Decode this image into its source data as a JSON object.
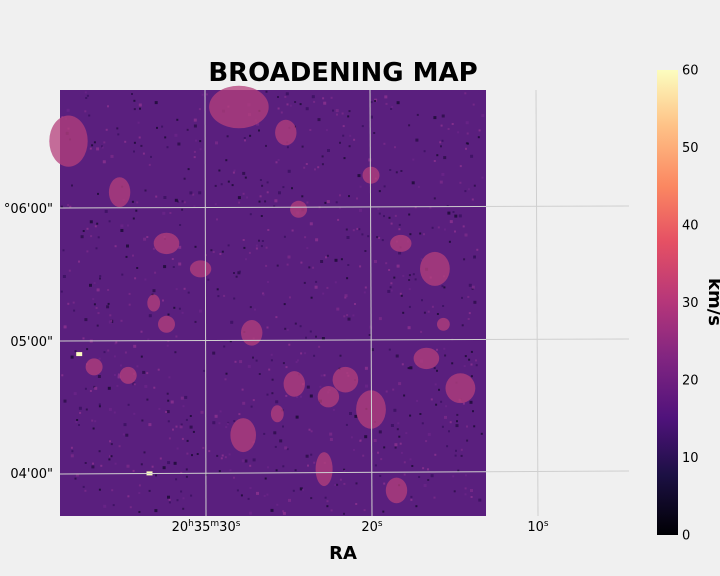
{
  "chart_data": {
    "type": "heatmap",
    "title": "BROADENING MAP",
    "xlabel": "RA",
    "ylabel": "",
    "colorbar": {
      "label": "km/s",
      "range": [
        0,
        60
      ],
      "ticks": [
        "0",
        "10",
        "20",
        "30",
        "40",
        "50",
        "60"
      ],
      "colormap": "magma"
    },
    "x_ticks": [
      "20h35m30s",
      "20s",
      "10s"
    ],
    "y_ticks": [
      "04'00\"",
      "05'00\"",
      "°06'00\""
    ],
    "grid": true,
    "background_level_kms": 18,
    "clumps_level_kms": 28,
    "bright_point_sources_level_kms": 60
  },
  "colors": {
    "background": "#f0f0f0",
    "grid": "#cfcfcf",
    "map_base": "#5a1f7e",
    "clump": "#b5407c",
    "hot_spot": "#fcfdbf"
  }
}
